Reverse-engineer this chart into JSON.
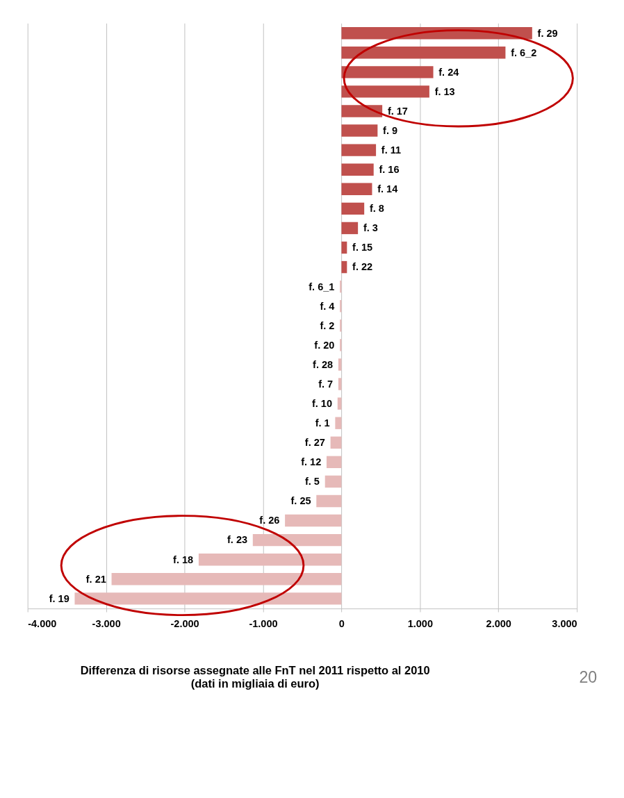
{
  "chart_data": {
    "type": "bar",
    "orientation": "horizontal",
    "title": "Differenza di risorse assegnate alle FnT nel 2011 rispetto al 2010",
    "subtitle": "(dati in migliaia di euro)",
    "categories": [
      "f. 29",
      "f. 6_2",
      "f. 24",
      "f. 13",
      "f. 17",
      "f. 9",
      "f. 11",
      "f. 16",
      "f. 14",
      "f. 8",
      "f. 3",
      "f. 15",
      "f. 22",
      "f. 6_1",
      "f. 4",
      "f. 2",
      "f. 20",
      "f. 28",
      "f. 7",
      "f. 10",
      "f. 1",
      "f. 27",
      "f. 12",
      "f. 5",
      "f. 25",
      "f. 26",
      "f. 23",
      "f. 18",
      "f. 21",
      "f. 19"
    ],
    "values": [
      2430,
      2090,
      1170,
      1120,
      520,
      460,
      440,
      410,
      390,
      290,
      210,
      70,
      70,
      -20,
      -20,
      -20,
      -20,
      -40,
      -40,
      -50,
      -80,
      -140,
      -190,
      -210,
      -320,
      -720,
      -1130,
      -1820,
      -2930,
      -3400
    ],
    "colors": [
      "#c0504d",
      "#c0504d",
      "#c0504d",
      "#c0504d",
      "#c0504d",
      "#c0504d",
      "#c0504d",
      "#c0504d",
      "#c0504d",
      "#c0504d",
      "#c0504d",
      "#c0504d",
      "#c0504d",
      "#e6b9b8",
      "#e6b9b8",
      "#e6b9b8",
      "#e6b9b8",
      "#e6b9b8",
      "#e6b9b8",
      "#e6b9b8",
      "#e6b9b8",
      "#e6b9b8",
      "#e6b9b8",
      "#e6b9b8",
      "#e6b9b8",
      "#e6b9b8",
      "#e6b9b8",
      "#e6b9b8",
      "#e6b9b8",
      "#e6b9b8"
    ],
    "xlim": [
      -4000,
      3000
    ],
    "xticks": [
      {
        "value": -4000,
        "label": "-4.000"
      },
      {
        "value": -3000,
        "label": "-3.000"
      },
      {
        "value": -2000,
        "label": "-2.000"
      },
      {
        "value": -1000,
        "label": "-1.000"
      },
      0,
      {
        "value": 1000,
        "label": "1.000"
      },
      {
        "value": 2000,
        "label": "2.000"
      },
      {
        "value": 3000,
        "label": "3.000"
      }
    ],
    "grid": "x",
    "tick_labels": "x",
    "annotations": [
      "20"
    ]
  }
}
